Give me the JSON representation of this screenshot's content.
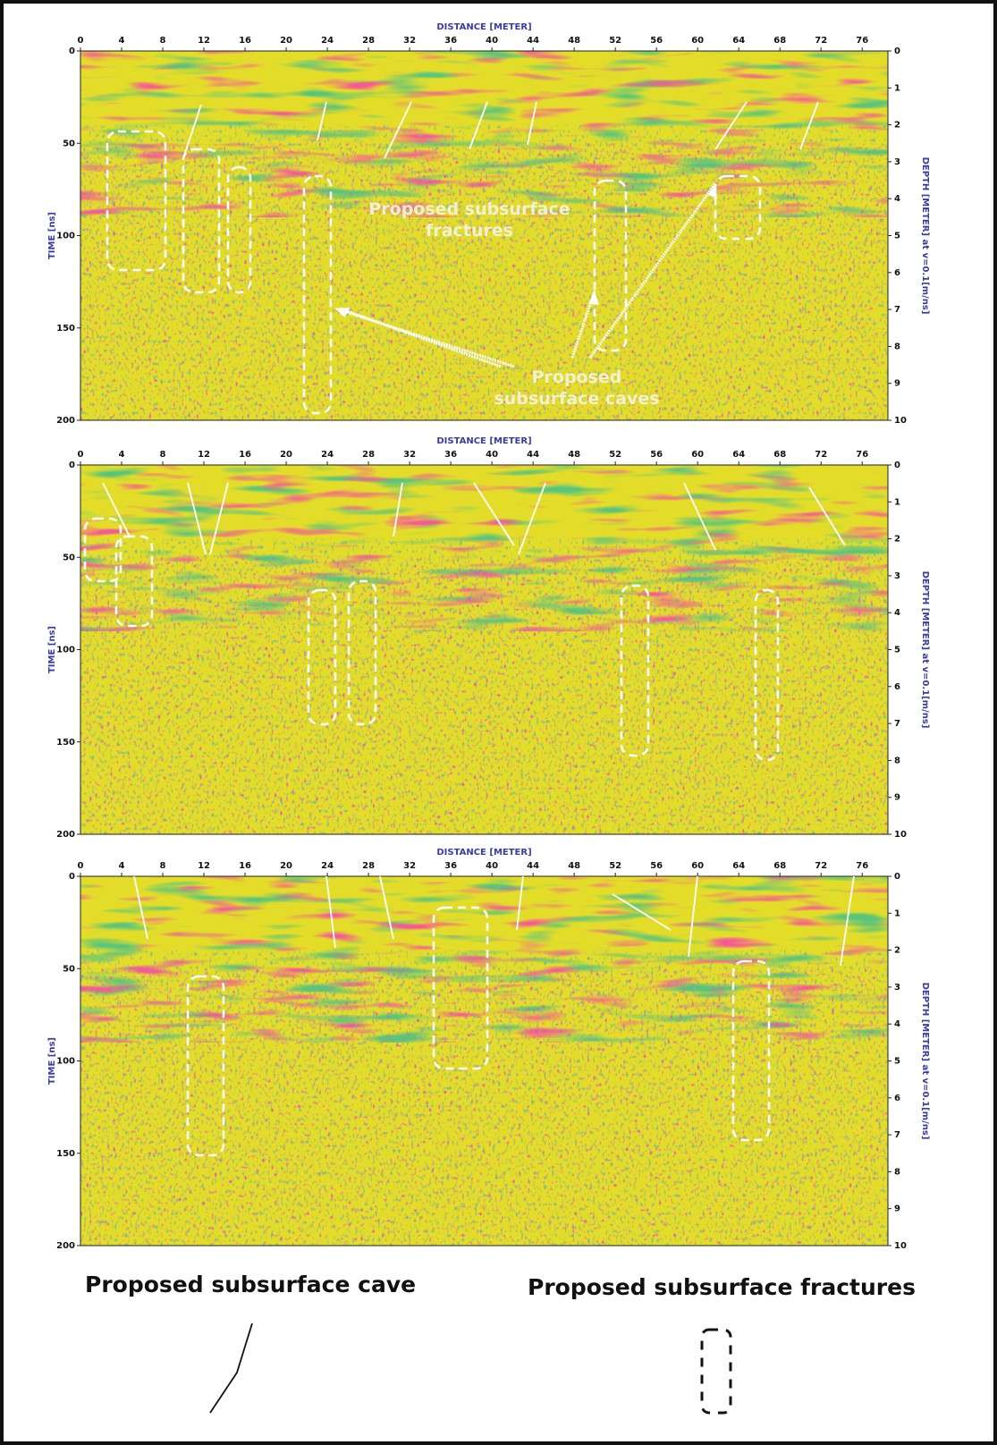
{
  "panels": [
    {
      "x_label": "DISTANCE [METER]",
      "y_label": "TIME [ns]",
      "y2_label": "DEPTH [METER] at v=0.1[m/ns]",
      "xlim": [
        0,
        78.5
      ],
      "ylim": [
        0,
        200
      ],
      "y2lim": [
        0,
        10
      ],
      "xticks": [
        0,
        4,
        8,
        12,
        16,
        20,
        24,
        28,
        32,
        36,
        40,
        44,
        48,
        52,
        56,
        60,
        64,
        68,
        72,
        76
      ],
      "yticks": [
        0,
        50,
        100,
        150,
        200
      ],
      "y2ticks": [
        0,
        1,
        2,
        3,
        4,
        5,
        6,
        7,
        8,
        9,
        10
      ],
      "annotations": [
        "Proposed subsurface fractures",
        "Proposed subsurface caves"
      ]
    },
    {
      "x_label": "DISTANCE [METER]",
      "y_label": "TIME [ns]",
      "y2_label": "DEPTH [METER] at v=0.1[m/ns]",
      "xlim": [
        0,
        78.5
      ],
      "ylim": [
        0,
        200
      ],
      "y2lim": [
        0,
        10
      ],
      "xticks": [
        0,
        4,
        8,
        12,
        16,
        20,
        24,
        28,
        32,
        36,
        40,
        44,
        48,
        52,
        56,
        60,
        64,
        68,
        72,
        76
      ],
      "yticks": [
        0,
        50,
        100,
        150,
        200
      ],
      "y2ticks": [
        0,
        1,
        2,
        3,
        4,
        5,
        6,
        7,
        8,
        9,
        10
      ]
    },
    {
      "x_label": "DISTANCE [METER]",
      "y_label": "TIME [ns]",
      "y2_label": "DEPTH [METER] at v=0.1[m/ns]",
      "xlim": [
        0,
        78.5
      ],
      "ylim": [
        0,
        200
      ],
      "y2lim": [
        0,
        10
      ],
      "xticks": [
        0,
        4,
        8,
        12,
        16,
        20,
        24,
        28,
        32,
        36,
        40,
        44,
        48,
        52,
        56,
        60,
        64,
        68,
        72,
        76
      ],
      "yticks": [
        0,
        50,
        100,
        150,
        200
      ],
      "y2ticks": [
        0,
        1,
        2,
        3,
        4,
        5,
        6,
        7,
        8,
        9,
        10
      ]
    }
  ],
  "legend": [
    "Proposed subsurface cave",
    "Proposed subsurface fractures"
  ]
}
